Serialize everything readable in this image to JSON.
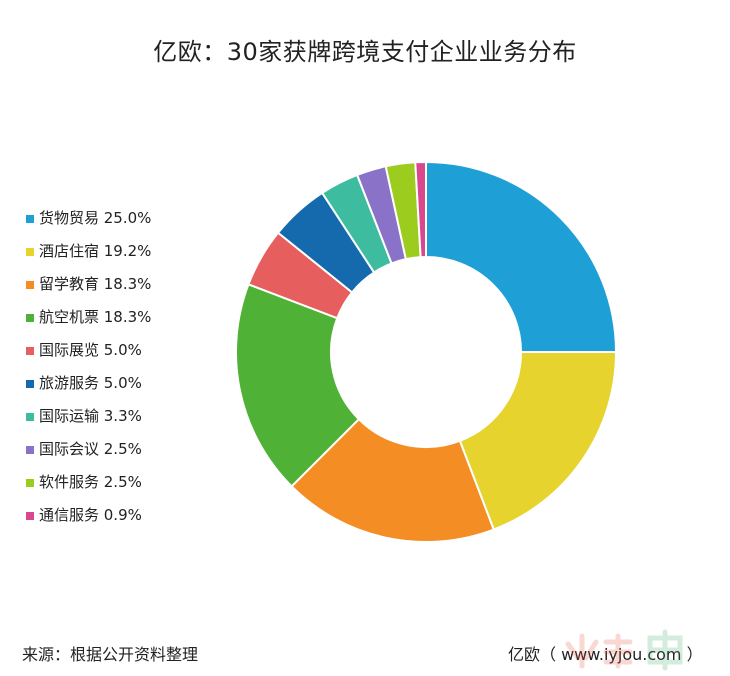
{
  "title": "亿欧：30家获牌跨境支付企业业务分布",
  "chart_data": {
    "type": "pie",
    "title": "亿欧：30家获牌跨境支付企业业务分布",
    "categories": [
      "货物贸易",
      "酒店住宿",
      "留学教育",
      "航空机票",
      "国际展览",
      "旅游服务",
      "国际运输",
      "国际会议",
      "软件服务",
      "通信服务"
    ],
    "values": [
      25.0,
      19.2,
      18.3,
      18.3,
      5.0,
      5.0,
      3.3,
      2.5,
      2.5,
      0.9
    ],
    "legend_labels": [
      "货物贸易 25.0%",
      "酒店住宿 19.2%",
      "留学教育 18.3%",
      "航空机票 18.3%",
      "国际展览 5.0%",
      "旅游服务 5.0%",
      "国际运输 3.3%",
      "国际会议 2.5%",
      "软件服务 2.5%",
      "通信服务 0.9%"
    ],
    "colors": [
      "#1e9fd6",
      "#e6d32e",
      "#f48d23",
      "#4fb136",
      "#e65e5e",
      "#146aad",
      "#3dbca0",
      "#8a72c9",
      "#9ccd1e",
      "#d9478f"
    ],
    "donut": true,
    "legend_position": "left"
  },
  "footer": {
    "source": "来源：根据公开资料整理",
    "credit": "亿欧（ www.iyjou.com ）"
  }
}
